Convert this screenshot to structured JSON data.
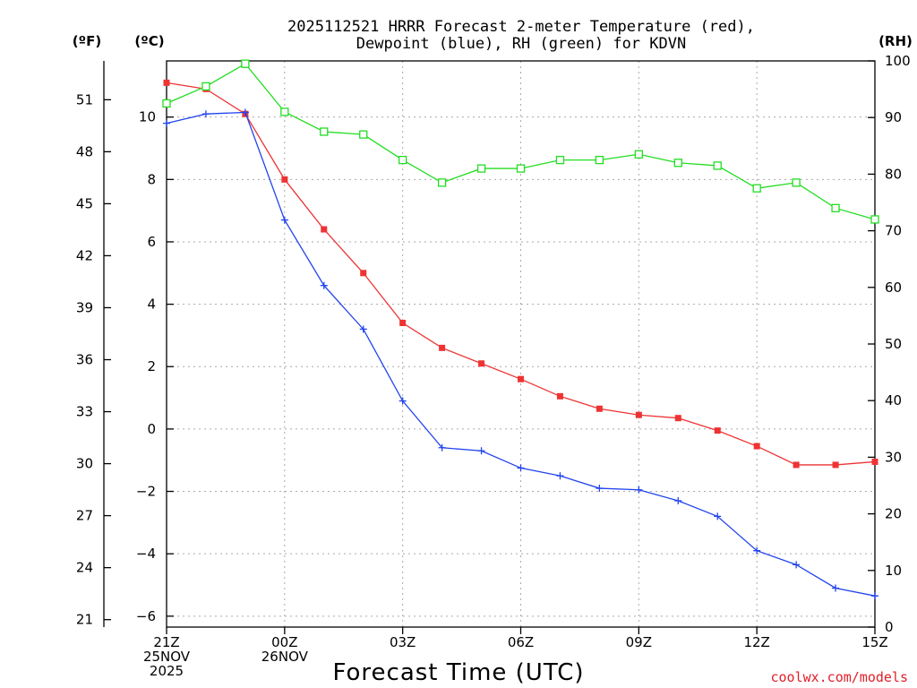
{
  "chart_data": {
    "type": "line",
    "title_line1": "2025112521 HRRR Forecast 2-meter Temperature (red),",
    "title_line2": "Dewpoint (blue), RH (green) for KDVN",
    "xlabel": "Forecast Time (UTC)",
    "credit": "coolwx.com/models",
    "units": {
      "fahrenheit": "(ºF)",
      "celsius": "(ºC)",
      "rh": "(RH)"
    },
    "x_hours": [
      0,
      1,
      2,
      3,
      4,
      5,
      6,
      7,
      8,
      9,
      10,
      11,
      12,
      13,
      14,
      15,
      16,
      17,
      18
    ],
    "x_ticks": [
      {
        "hour": 0,
        "lines": [
          "21Z",
          "25NOV",
          "2025"
        ]
      },
      {
        "hour": 3,
        "lines": [
          "00Z",
          "26NOV"
        ]
      },
      {
        "hour": 6,
        "lines": [
          "03Z"
        ]
      },
      {
        "hour": 9,
        "lines": [
          "06Z"
        ]
      },
      {
        "hour": 12,
        "lines": [
          "09Z"
        ]
      },
      {
        "hour": 15,
        "lines": [
          "12Z"
        ]
      },
      {
        "hour": 18,
        "lines": [
          "15Z"
        ]
      }
    ],
    "celsius_ticks": [
      -6,
      -4,
      -2,
      0,
      2,
      4,
      6,
      8,
      10
    ],
    "celsius_tick_labels": [
      "−6",
      "−4",
      "−2",
      "0",
      "2",
      "4",
      "6",
      "8",
      "10"
    ],
    "fahrenheit_ticks": [
      21,
      24,
      27,
      30,
      33,
      36,
      39,
      42,
      45,
      48,
      51
    ],
    "rh_ticks": [
      0,
      10,
      20,
      30,
      40,
      50,
      60,
      70,
      80,
      90,
      100
    ],
    "celsius_range": [
      -6.35,
      11.8
    ],
    "rh_range": [
      0,
      100
    ],
    "series": [
      {
        "name": "Temperature",
        "unit": "C",
        "color": "#ee3333",
        "marker": "filled-square",
        "values": [
          11.1,
          10.9,
          10.1,
          8.0,
          6.4,
          5.0,
          3.4,
          2.6,
          2.1,
          1.6,
          1.05,
          0.65,
          0.45,
          0.35,
          -0.05,
          -0.55,
          -1.15,
          -1.15,
          -1.05
        ]
      },
      {
        "name": "Dewpoint",
        "unit": "C",
        "color": "#2244ee",
        "marker": "plus",
        "values": [
          9.8,
          10.1,
          10.15,
          6.7,
          4.6,
          3.2,
          0.9,
          -0.6,
          -0.7,
          -1.25,
          -1.5,
          -1.9,
          -1.95,
          -2.3,
          -2.8,
          -3.9,
          -4.35,
          -5.1,
          -5.35
        ]
      },
      {
        "name": "RH",
        "unit": "%",
        "color": "#22dd22",
        "marker": "open-square",
        "values": [
          92.5,
          95.5,
          99.5,
          91.0,
          87.5,
          87.0,
          82.5,
          78.5,
          81.0,
          81.0,
          82.5,
          82.5,
          83.5,
          82.0,
          81.5,
          77.5,
          78.5,
          74.0,
          72.0
        ]
      }
    ]
  }
}
